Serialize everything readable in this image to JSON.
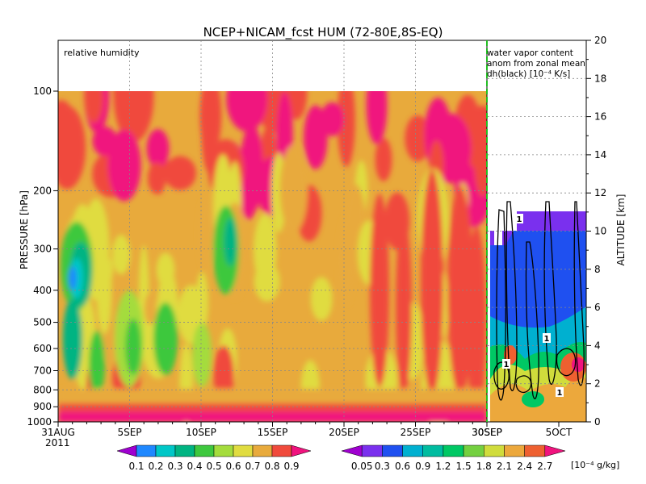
{
  "chart_data": {
    "type": "heatmap",
    "title": "NCEP+NICAM_fcst HUM (72-80E,8S-EQ)",
    "left_panel": {
      "label": "relative humidity",
      "x_ticks": [
        "31AUG",
        "5SEP",
        "10SEP",
        "15SEP",
        "20SEP",
        "25SEP",
        "30SEP"
      ],
      "x_year": "2011",
      "y_axis_label": "PRESSURE [hPa]",
      "y_ticks": [
        "100",
        "200",
        "300",
        "400",
        "500",
        "600",
        "700",
        "800",
        "900",
        "1000"
      ],
      "pressure_range_hpa": [
        1000,
        100
      ],
      "colorbar_levels": [
        "0.1",
        "0.2",
        "0.3",
        "0.4",
        "0.5",
        "0.6",
        "0.7",
        "0.8",
        "0.9"
      ],
      "colors": [
        "#9f00d0",
        "#1f88ff",
        "#00c7c7",
        "#00b482",
        "#3ec83e",
        "#a4dc3c",
        "#e0dc40",
        "#e8aa3c",
        "#f04a3c",
        "#f0137e"
      ]
    },
    "right_panel": {
      "label_lines": [
        "water vapor content",
        "anom from zonal mean",
        "dh(black) [10⁻⁴ K/s]"
      ],
      "x_ticks": [
        "30SEP",
        "5OCT"
      ],
      "y_axis_label": "ALTITUDE [km]",
      "y_ticks": [
        "0",
        "2",
        "4",
        "6",
        "8",
        "10",
        "12",
        "14",
        "16",
        "18",
        "20"
      ],
      "altitude_range_km": [
        0,
        20
      ],
      "colorbar_levels": [
        "0.05",
        "0.3",
        "0.6",
        "0.9",
        "1.2",
        "1.5",
        "1.8",
        "2.1",
        "2.4",
        "2.7"
      ],
      "colorbar_unit": "[10⁻⁴ g/kg]",
      "colors": [
        "#9f00d0",
        "#7a30ee",
        "#1f50f0",
        "#00b0d0",
        "#00bca0",
        "#00c864",
        "#74d040",
        "#d0dc3c",
        "#eca83c",
        "#ee6030",
        "#f0137e"
      ],
      "contour_label": "1"
    }
  }
}
